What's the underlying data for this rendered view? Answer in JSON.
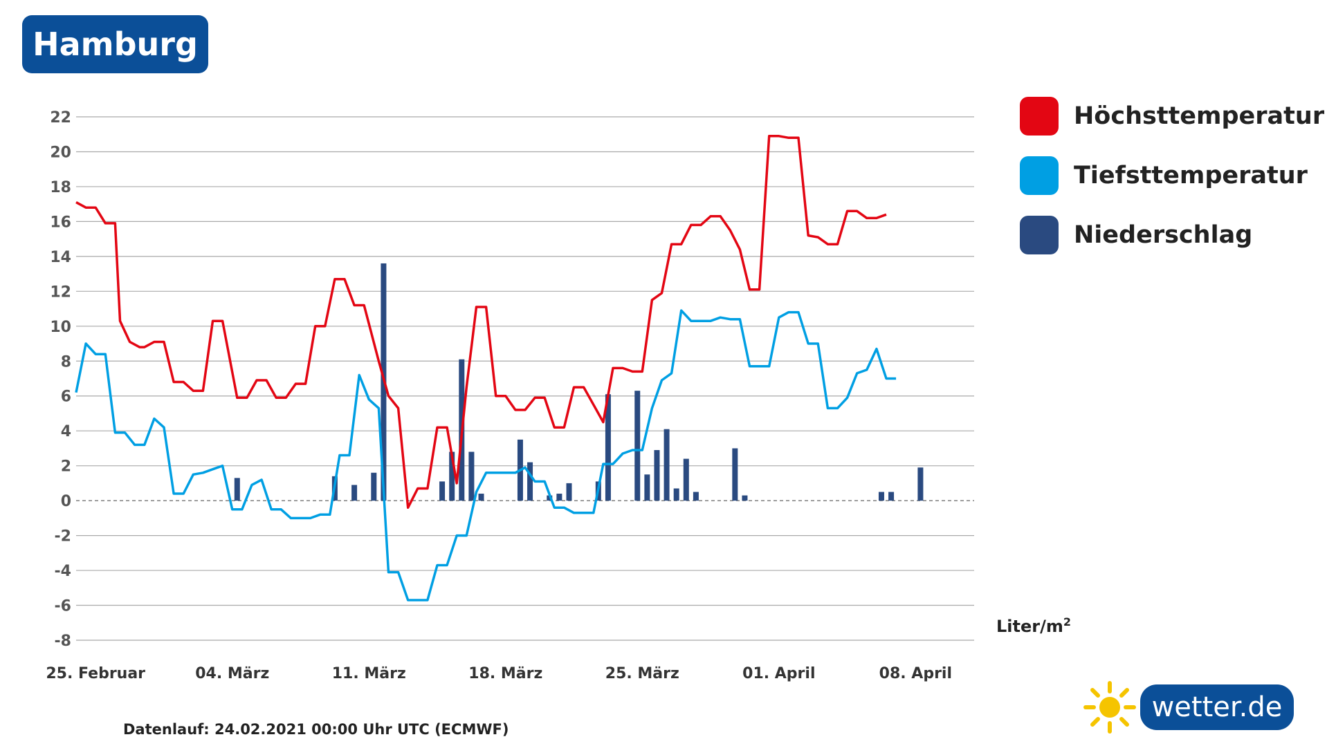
{
  "header": {
    "city": "Hamburg"
  },
  "legend": [
    {
      "label": "Höchsttemperatur",
      "color": "#e30613"
    },
    {
      "label": "Tiefsttemperatur",
      "color": "#009fe3"
    },
    {
      "label": "Niederschlag",
      "color": "#2a4a80"
    }
  ],
  "unit": {
    "text": "Liter/m",
    "sup": "2"
  },
  "footnote": "Datenlauf: 24.02.2021 00:00 Uhr UTC (ECMWF)",
  "logo": {
    "text": "wetter.de",
    "icon": "sun-icon"
  },
  "chart_data": {
    "type": "line",
    "title": "",
    "xlabel": "",
    "ylabel": "",
    "ylim": [
      -8,
      22
    ],
    "yticks": [
      22,
      20,
      18,
      16,
      14,
      12,
      10,
      8,
      6,
      4,
      2,
      0,
      -2,
      -4,
      -6,
      -8
    ],
    "grid": true,
    "legend_position": "right",
    "x_start": "2021-02-24",
    "x_end": "2021-04-11",
    "x_ticks": [
      {
        "date": "2021-02-25",
        "label": "25. Februar"
      },
      {
        "date": "2021-03-04",
        "label": "04. März"
      },
      {
        "date": "2021-03-11",
        "label": "11. März"
      },
      {
        "date": "2021-03-18",
        "label": "18. März"
      },
      {
        "date": "2021-03-25",
        "label": "25. März"
      },
      {
        "date": "2021-04-01",
        "label": "01. April"
      },
      {
        "date": "2021-04-08",
        "label": "08. April"
      }
    ],
    "series": [
      {
        "name": "Höchsttemperatur",
        "kind": "line",
        "color": "#e30613",
        "points": [
          [
            "2021-02-24T00:00",
            17.1
          ],
          [
            "2021-02-24T12:00",
            16.8
          ],
          [
            "2021-02-25T00:00",
            16.8
          ],
          [
            "2021-02-25T12:00",
            15.9
          ],
          [
            "2021-02-26T00:00",
            15.9
          ],
          [
            "2021-02-26T06:00",
            10.3
          ],
          [
            "2021-02-26T18:00",
            9.1
          ],
          [
            "2021-02-27T06:00",
            8.8
          ],
          [
            "2021-02-27T12:00",
            8.8
          ],
          [
            "2021-02-28T00:00",
            9.1
          ],
          [
            "2021-02-28T12:00",
            9.1
          ],
          [
            "2021-03-01T00:00",
            6.8
          ],
          [
            "2021-03-01T12:00",
            6.8
          ],
          [
            "2021-03-02T00:00",
            6.3
          ],
          [
            "2021-03-02T12:00",
            6.3
          ],
          [
            "2021-03-03T00:00",
            10.3
          ],
          [
            "2021-03-03T12:00",
            10.3
          ],
          [
            "2021-03-04T06:00",
            5.9
          ],
          [
            "2021-03-04T18:00",
            5.9
          ],
          [
            "2021-03-05T06:00",
            6.9
          ],
          [
            "2021-03-05T18:00",
            6.9
          ],
          [
            "2021-03-06T06:00",
            5.9
          ],
          [
            "2021-03-06T18:00",
            5.9
          ],
          [
            "2021-03-07T06:00",
            6.7
          ],
          [
            "2021-03-07T18:00",
            6.7
          ],
          [
            "2021-03-08T06:00",
            10.0
          ],
          [
            "2021-03-08T18:00",
            10.0
          ],
          [
            "2021-03-09T06:00",
            12.7
          ],
          [
            "2021-03-09T18:00",
            12.7
          ],
          [
            "2021-03-10T06:00",
            11.2
          ],
          [
            "2021-03-10T18:00",
            11.2
          ],
          [
            "2021-03-11T12:00",
            8.0
          ],
          [
            "2021-03-12T00:00",
            6.0
          ],
          [
            "2021-03-12T12:00",
            5.3
          ],
          [
            "2021-03-13T00:00",
            -0.4
          ],
          [
            "2021-03-13T12:00",
            0.7
          ],
          [
            "2021-03-14T00:00",
            0.7
          ],
          [
            "2021-03-14T12:00",
            4.2
          ],
          [
            "2021-03-15T00:00",
            4.2
          ],
          [
            "2021-03-15T12:00",
            1.0
          ],
          [
            "2021-03-16T00:00",
            6.5
          ],
          [
            "2021-03-16T12:00",
            11.1
          ],
          [
            "2021-03-17T00:00",
            11.1
          ],
          [
            "2021-03-17T12:00",
            6.0
          ],
          [
            "2021-03-18T00:00",
            6.0
          ],
          [
            "2021-03-18T12:00",
            5.2
          ],
          [
            "2021-03-19T00:00",
            5.2
          ],
          [
            "2021-03-19T12:00",
            5.9
          ],
          [
            "2021-03-20T00:00",
            5.9
          ],
          [
            "2021-03-20T12:00",
            4.2
          ],
          [
            "2021-03-21T00:00",
            4.2
          ],
          [
            "2021-03-21T12:00",
            6.5
          ],
          [
            "2021-03-22T00:00",
            6.5
          ],
          [
            "2021-03-22T12:00",
            5.5
          ],
          [
            "2021-03-23T00:00",
            4.5
          ],
          [
            "2021-03-23T12:00",
            7.6
          ],
          [
            "2021-03-24T00:00",
            7.6
          ],
          [
            "2021-03-24T12:00",
            7.4
          ],
          [
            "2021-03-25T00:00",
            7.4
          ],
          [
            "2021-03-25T12:00",
            11.5
          ],
          [
            "2021-03-26T00:00",
            11.9
          ],
          [
            "2021-03-26T12:00",
            14.7
          ],
          [
            "2021-03-27T00:00",
            14.7
          ],
          [
            "2021-03-27T12:00",
            15.8
          ],
          [
            "2021-03-28T00:00",
            15.8
          ],
          [
            "2021-03-28T12:00",
            16.3
          ],
          [
            "2021-03-29T00:00",
            16.3
          ],
          [
            "2021-03-29T12:00",
            15.5
          ],
          [
            "2021-03-30T00:00",
            14.4
          ],
          [
            "2021-03-30T12:00",
            12.1
          ],
          [
            "2021-03-31T00:00",
            12.1
          ],
          [
            "2021-03-31T12:00",
            20.9
          ],
          [
            "2021-04-01T00:00",
            20.9
          ],
          [
            "2021-04-01T12:00",
            20.8
          ],
          [
            "2021-04-02T00:00",
            20.8
          ],
          [
            "2021-04-02T12:00",
            15.2
          ],
          [
            "2021-04-03T00:00",
            15.1
          ],
          [
            "2021-04-03T12:00",
            14.7
          ],
          [
            "2021-04-04T00:00",
            14.7
          ],
          [
            "2021-04-04T12:00",
            16.6
          ],
          [
            "2021-04-05T00:00",
            16.6
          ],
          [
            "2021-04-05T12:00",
            16.2
          ],
          [
            "2021-04-06T00:00",
            16.2
          ],
          [
            "2021-04-06T12:00",
            16.4
          ]
        ]
      },
      {
        "name": "Tiefsttemperatur",
        "kind": "line",
        "color": "#009fe3",
        "points": [
          [
            "2021-02-24T00:00",
            6.2
          ],
          [
            "2021-02-24T12:00",
            9.0
          ],
          [
            "2021-02-25T00:00",
            8.4
          ],
          [
            "2021-02-25T12:00",
            8.4
          ],
          [
            "2021-02-26T00:00",
            3.9
          ],
          [
            "2021-02-26T12:00",
            3.9
          ],
          [
            "2021-02-27T00:00",
            3.2
          ],
          [
            "2021-02-27T12:00",
            3.2
          ],
          [
            "2021-02-28T00:00",
            4.7
          ],
          [
            "2021-02-28T12:00",
            4.2
          ],
          [
            "2021-03-01T00:00",
            0.4
          ],
          [
            "2021-03-01T12:00",
            0.4
          ],
          [
            "2021-03-02T00:00",
            1.5
          ],
          [
            "2021-03-02T12:00",
            1.6
          ],
          [
            "2021-03-03T00:00",
            1.8
          ],
          [
            "2021-03-03T12:00",
            2.0
          ],
          [
            "2021-03-04T00:00",
            -0.5
          ],
          [
            "2021-03-04T12:00",
            -0.5
          ],
          [
            "2021-03-05T00:00",
            0.9
          ],
          [
            "2021-03-05T12:00",
            1.2
          ],
          [
            "2021-03-06T00:00",
            -0.5
          ],
          [
            "2021-03-06T12:00",
            -0.5
          ],
          [
            "2021-03-07T00:00",
            -1.0
          ],
          [
            "2021-03-07T12:00",
            -1.0
          ],
          [
            "2021-03-08T00:00",
            -1.0
          ],
          [
            "2021-03-08T12:00",
            -0.8
          ],
          [
            "2021-03-09T00:00",
            -0.8
          ],
          [
            "2021-03-09T12:00",
            2.6
          ],
          [
            "2021-03-10T00:00",
            2.6
          ],
          [
            "2021-03-10T12:00",
            7.2
          ],
          [
            "2021-03-11T00:00",
            5.8
          ],
          [
            "2021-03-11T12:00",
            5.3
          ],
          [
            "2021-03-12T00:00",
            -4.1
          ],
          [
            "2021-03-12T12:00",
            -4.1
          ],
          [
            "2021-03-13T00:00",
            -5.7
          ],
          [
            "2021-03-13T12:00",
            -5.7
          ],
          [
            "2021-03-14T00:00",
            -5.7
          ],
          [
            "2021-03-14T12:00",
            -3.7
          ],
          [
            "2021-03-15T00:00",
            -3.7
          ],
          [
            "2021-03-15T12:00",
            -2.0
          ],
          [
            "2021-03-16T00:00",
            -2.0
          ],
          [
            "2021-03-16T12:00",
            0.5
          ],
          [
            "2021-03-17T00:00",
            1.6
          ],
          [
            "2021-03-17T12:00",
            1.6
          ],
          [
            "2021-03-18T00:00",
            1.6
          ],
          [
            "2021-03-18T12:00",
            1.6
          ],
          [
            "2021-03-19T00:00",
            1.9
          ],
          [
            "2021-03-19T12:00",
            1.1
          ],
          [
            "2021-03-20T00:00",
            1.1
          ],
          [
            "2021-03-20T12:00",
            -0.4
          ],
          [
            "2021-03-21T00:00",
            -0.4
          ],
          [
            "2021-03-21T12:00",
            -0.7
          ],
          [
            "2021-03-22T00:00",
            -0.7
          ],
          [
            "2021-03-22T12:00",
            -0.7
          ],
          [
            "2021-03-23T00:00",
            2.1
          ],
          [
            "2021-03-23T12:00",
            2.1
          ],
          [
            "2021-03-24T00:00",
            2.7
          ],
          [
            "2021-03-24T12:00",
            2.9
          ],
          [
            "2021-03-25T00:00",
            2.9
          ],
          [
            "2021-03-25T12:00",
            5.3
          ],
          [
            "2021-03-26T00:00",
            6.9
          ],
          [
            "2021-03-26T12:00",
            7.3
          ],
          [
            "2021-03-27T00:00",
            10.9
          ],
          [
            "2021-03-27T12:00",
            10.3
          ],
          [
            "2021-03-28T00:00",
            10.3
          ],
          [
            "2021-03-28T12:00",
            10.3
          ],
          [
            "2021-03-29T00:00",
            10.5
          ],
          [
            "2021-03-29T12:00",
            10.4
          ],
          [
            "2021-03-30T00:00",
            10.4
          ],
          [
            "2021-03-30T12:00",
            7.7
          ],
          [
            "2021-03-31T00:00",
            7.7
          ],
          [
            "2021-03-31T12:00",
            7.7
          ],
          [
            "2021-04-01T00:00",
            10.5
          ],
          [
            "2021-04-01T12:00",
            10.8
          ],
          [
            "2021-04-02T00:00",
            10.8
          ],
          [
            "2021-04-02T12:00",
            9.0
          ],
          [
            "2021-04-03T00:00",
            9.0
          ],
          [
            "2021-04-03T12:00",
            5.3
          ],
          [
            "2021-04-04T00:00",
            5.3
          ],
          [
            "2021-04-04T12:00",
            5.9
          ],
          [
            "2021-04-05T00:00",
            7.3
          ],
          [
            "2021-04-05T12:00",
            7.5
          ],
          [
            "2021-04-06T00:00",
            8.7
          ],
          [
            "2021-04-06T12:00",
            7.0
          ],
          [
            "2021-04-07T00:00",
            7.0
          ]
        ]
      },
      {
        "name": "Niederschlag",
        "kind": "bar",
        "color": "#2a4a80",
        "points": [
          [
            "2021-03-04T06:00",
            1.3
          ],
          [
            "2021-03-09T06:00",
            1.4
          ],
          [
            "2021-03-10T06:00",
            0.9
          ],
          [
            "2021-03-11T06:00",
            1.6
          ],
          [
            "2021-03-11T18:00",
            13.6
          ],
          [
            "2021-03-14T18:00",
            1.1
          ],
          [
            "2021-03-15T06:00",
            2.8
          ],
          [
            "2021-03-15T18:00",
            8.1
          ],
          [
            "2021-03-16T06:00",
            2.8
          ],
          [
            "2021-03-16T18:00",
            0.4
          ],
          [
            "2021-03-18T18:00",
            3.5
          ],
          [
            "2021-03-19T06:00",
            2.2
          ],
          [
            "2021-03-20T06:00",
            0.3
          ],
          [
            "2021-03-20T18:00",
            0.4
          ],
          [
            "2021-03-21T06:00",
            1.0
          ],
          [
            "2021-03-22T18:00",
            1.1
          ],
          [
            "2021-03-23T06:00",
            6.1
          ],
          [
            "2021-03-24T18:00",
            6.3
          ],
          [
            "2021-03-25T06:00",
            1.5
          ],
          [
            "2021-03-25T18:00",
            2.9
          ],
          [
            "2021-03-26T06:00",
            4.1
          ],
          [
            "2021-03-26T18:00",
            0.7
          ],
          [
            "2021-03-27T06:00",
            2.4
          ],
          [
            "2021-03-27T18:00",
            0.5
          ],
          [
            "2021-03-29T18:00",
            3.0
          ],
          [
            "2021-03-30T06:00",
            0.3
          ],
          [
            "2021-04-06T06:00",
            0.5
          ],
          [
            "2021-04-06T18:00",
            0.5
          ],
          [
            "2021-04-08T06:00",
            1.9
          ]
        ]
      }
    ]
  }
}
